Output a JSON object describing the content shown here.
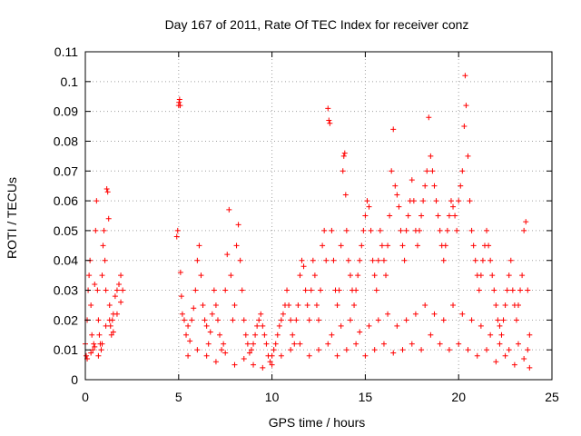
{
  "chart_data": {
    "type": "scatter",
    "title": "Day 167 of 2011, Rate Of TEC Index for receiver conz",
    "xlabel": "GPS time / hours",
    "ylabel": "ROTI / TECUs",
    "xlim": [
      0,
      25
    ],
    "ylim": [
      0,
      0.11
    ],
    "xticks": [
      0,
      5,
      10,
      15,
      20,
      25
    ],
    "xtick_labels": [
      "0",
      "5",
      "10",
      "15",
      "20",
      "25"
    ],
    "yticks": [
      0,
      0.01,
      0.02,
      0.03,
      0.04,
      0.05,
      0.06,
      0.07,
      0.08,
      0.09,
      0.1,
      0.11
    ],
    "ytick_labels": [
      "0",
      "0.01",
      "0.02",
      "0.03",
      "0.04",
      "0.05",
      "0.06",
      "0.07",
      "0.08",
      "0.09",
      "0.1",
      "0.11"
    ],
    "grid": true,
    "marker": "+",
    "color": "#ff0000",
    "series": [
      {
        "points": [
          [
            0.0,
            0.012
          ],
          [
            0.05,
            0.008
          ],
          [
            0.1,
            0.02
          ],
          [
            0.15,
            0.03
          ],
          [
            0.2,
            0.035
          ],
          [
            0.25,
            0.04
          ],
          [
            0.3,
            0.025
          ],
          [
            0.35,
            0.015
          ],
          [
            0.4,
            0.01
          ],
          [
            0.45,
            0.012
          ],
          [
            0.5,
            0.032
          ],
          [
            0.55,
            0.05
          ],
          [
            0.6,
            0.06
          ],
          [
            0.65,
            0.03
          ],
          [
            0.7,
            0.02
          ],
          [
            0.75,
            0.015
          ],
          [
            0.8,
            0.012
          ],
          [
            0.85,
            0.01
          ],
          [
            0.9,
            0.035
          ],
          [
            0.95,
            0.045
          ],
          [
            1.0,
            0.05
          ],
          [
            1.05,
            0.04
          ],
          [
            1.1,
            0.03
          ],
          [
            1.15,
            0.064
          ],
          [
            1.2,
            0.063
          ],
          [
            1.25,
            0.054
          ],
          [
            1.3,
            0.025
          ],
          [
            1.35,
            0.018
          ],
          [
            1.4,
            0.015
          ],
          [
            1.45,
            0.02
          ],
          [
            1.5,
            0.022
          ],
          [
            1.6,
            0.028
          ],
          [
            1.7,
            0.03
          ],
          [
            1.8,
            0.032
          ],
          [
            1.9,
            0.035
          ],
          [
            2.0,
            0.03
          ],
          [
            0.1,
            0.007
          ],
          [
            0.3,
            0.009
          ],
          [
            0.5,
            0.011
          ],
          [
            0.7,
            0.008
          ],
          [
            0.9,
            0.012
          ],
          [
            1.1,
            0.018
          ],
          [
            1.3,
            0.02
          ],
          [
            1.5,
            0.016
          ],
          [
            1.7,
            0.022
          ],
          [
            1.9,
            0.026
          ],
          [
            4.9,
            0.048
          ],
          [
            4.95,
            0.05
          ],
          [
            5.0,
            0.092
          ],
          [
            5.02,
            0.093
          ],
          [
            5.05,
            0.094
          ],
          [
            5.08,
            0.092
          ],
          [
            5.1,
            0.036
          ],
          [
            5.15,
            0.028
          ],
          [
            5.2,
            0.022
          ],
          [
            5.3,
            0.02
          ],
          [
            5.4,
            0.015
          ],
          [
            5.5,
            0.018
          ],
          [
            5.6,
            0.013
          ],
          [
            5.7,
            0.02
          ],
          [
            5.8,
            0.024
          ],
          [
            5.9,
            0.03
          ],
          [
            6.0,
            0.04
          ],
          [
            6.1,
            0.045
          ],
          [
            6.2,
            0.035
          ],
          [
            6.3,
            0.025
          ],
          [
            6.4,
            0.02
          ],
          [
            6.5,
            0.018
          ],
          [
            6.6,
            0.012
          ],
          [
            6.7,
            0.016
          ],
          [
            6.8,
            0.022
          ],
          [
            6.9,
            0.03
          ],
          [
            7.0,
            0.025
          ],
          [
            7.1,
            0.02
          ],
          [
            7.2,
            0.015
          ],
          [
            7.3,
            0.01
          ],
          [
            7.4,
            0.012
          ],
          [
            7.5,
            0.03
          ],
          [
            7.6,
            0.042
          ],
          [
            7.7,
            0.057
          ],
          [
            7.8,
            0.035
          ],
          [
            7.9,
            0.02
          ],
          [
            8.0,
            0.025
          ],
          [
            8.1,
            0.045
          ],
          [
            8.2,
            0.052
          ],
          [
            8.3,
            0.04
          ],
          [
            8.4,
            0.03
          ],
          [
            8.5,
            0.02
          ],
          [
            8.6,
            0.015
          ],
          [
            8.7,
            0.012
          ],
          [
            8.8,
            0.009
          ],
          [
            8.9,
            0.01
          ],
          [
            9.0,
            0.012
          ],
          [
            9.1,
            0.015
          ],
          [
            9.2,
            0.018
          ],
          [
            9.3,
            0.02
          ],
          [
            9.4,
            0.022
          ],
          [
            9.5,
            0.018
          ],
          [
            9.6,
            0.015
          ],
          [
            9.7,
            0.012
          ],
          [
            9.8,
            0.008
          ],
          [
            9.9,
            0.006
          ],
          [
            10.0,
            0.008
          ],
          [
            10.1,
            0.01
          ],
          [
            10.2,
            0.012
          ],
          [
            10.3,
            0.015
          ],
          [
            10.4,
            0.018
          ],
          [
            10.5,
            0.02
          ],
          [
            10.6,
            0.022
          ],
          [
            10.7,
            0.025
          ],
          [
            10.8,
            0.03
          ],
          [
            10.9,
            0.025
          ],
          [
            11.0,
            0.02
          ],
          [
            11.1,
            0.015
          ],
          [
            11.2,
            0.012
          ],
          [
            11.3,
            0.02
          ],
          [
            11.4,
            0.025
          ],
          [
            11.5,
            0.035
          ],
          [
            11.6,
            0.04
          ],
          [
            11.7,
            0.038
          ],
          [
            11.8,
            0.03
          ],
          [
            11.9,
            0.025
          ],
          [
            12.0,
            0.02
          ],
          [
            12.1,
            0.03
          ],
          [
            12.2,
            0.04
          ],
          [
            12.3,
            0.035
          ],
          [
            12.4,
            0.025
          ],
          [
            12.5,
            0.02
          ],
          [
            12.6,
            0.03
          ],
          [
            12.7,
            0.045
          ],
          [
            12.8,
            0.05
          ],
          [
            12.9,
            0.04
          ],
          [
            5.5,
            0.008
          ],
          [
            6.0,
            0.01
          ],
          [
            6.5,
            0.008
          ],
          [
            7.0,
            0.006
          ],
          [
            7.5,
            0.009
          ],
          [
            8.0,
            0.005
          ],
          [
            8.5,
            0.007
          ],
          [
            9.0,
            0.005
          ],
          [
            9.5,
            0.004
          ],
          [
            10.0,
            0.005
          ],
          [
            10.5,
            0.008
          ],
          [
            11.0,
            0.01
          ],
          [
            11.5,
            0.012
          ],
          [
            12.0,
            0.008
          ],
          [
            12.5,
            0.01
          ],
          [
            13.0,
            0.091
          ],
          [
            13.05,
            0.087
          ],
          [
            13.1,
            0.086
          ],
          [
            13.2,
            0.05
          ],
          [
            13.3,
            0.04
          ],
          [
            13.4,
            0.03
          ],
          [
            13.5,
            0.025
          ],
          [
            13.6,
            0.03
          ],
          [
            13.7,
            0.045
          ],
          [
            13.8,
            0.07
          ],
          [
            13.85,
            0.075
          ],
          [
            13.9,
            0.076
          ],
          [
            13.95,
            0.062
          ],
          [
            14.0,
            0.05
          ],
          [
            14.1,
            0.04
          ],
          [
            14.2,
            0.035
          ],
          [
            14.3,
            0.03
          ],
          [
            14.4,
            0.025
          ],
          [
            14.5,
            0.03
          ],
          [
            14.6,
            0.035
          ],
          [
            14.7,
            0.04
          ],
          [
            14.8,
            0.045
          ],
          [
            14.9,
            0.05
          ],
          [
            15.0,
            0.055
          ],
          [
            15.1,
            0.06
          ],
          [
            15.2,
            0.058
          ],
          [
            15.3,
            0.05
          ],
          [
            15.4,
            0.04
          ],
          [
            15.5,
            0.035
          ],
          [
            15.6,
            0.03
          ],
          [
            15.7,
            0.04
          ],
          [
            15.8,
            0.05
          ],
          [
            15.9,
            0.045
          ],
          [
            16.0,
            0.04
          ],
          [
            16.1,
            0.035
          ],
          [
            16.2,
            0.045
          ],
          [
            16.3,
            0.055
          ],
          [
            16.4,
            0.07
          ],
          [
            16.5,
            0.084
          ],
          [
            16.6,
            0.065
          ],
          [
            16.7,
            0.062
          ],
          [
            16.8,
            0.058
          ],
          [
            16.9,
            0.05
          ],
          [
            17.0,
            0.045
          ],
          [
            17.1,
            0.04
          ],
          [
            17.2,
            0.05
          ],
          [
            17.3,
            0.055
          ],
          [
            17.4,
            0.06
          ],
          [
            17.5,
            0.067
          ],
          [
            17.6,
            0.06
          ],
          [
            17.7,
            0.05
          ],
          [
            17.8,
            0.045
          ],
          [
            17.9,
            0.05
          ],
          [
            18.0,
            0.055
          ],
          [
            18.1,
            0.06
          ],
          [
            18.2,
            0.065
          ],
          [
            18.3,
            0.07
          ],
          [
            18.4,
            0.088
          ],
          [
            18.5,
            0.075
          ],
          [
            18.6,
            0.07
          ],
          [
            18.7,
            0.065
          ],
          [
            18.8,
            0.06
          ],
          [
            18.9,
            0.055
          ],
          [
            19.0,
            0.05
          ],
          [
            19.1,
            0.045
          ],
          [
            19.2,
            0.04
          ],
          [
            19.3,
            0.045
          ],
          [
            19.4,
            0.05
          ],
          [
            19.5,
            0.055
          ],
          [
            19.6,
            0.06
          ],
          [
            19.7,
            0.058
          ],
          [
            19.8,
            0.055
          ],
          [
            19.9,
            0.05
          ],
          [
            20.0,
            0.06
          ],
          [
            20.1,
            0.065
          ],
          [
            20.2,
            0.07
          ],
          [
            20.3,
            0.085
          ],
          [
            20.35,
            0.102
          ],
          [
            20.4,
            0.092
          ],
          [
            20.5,
            0.075
          ],
          [
            20.6,
            0.06
          ],
          [
            20.7,
            0.05
          ],
          [
            20.8,
            0.045
          ],
          [
            20.9,
            0.04
          ],
          [
            21.0,
            0.035
          ],
          [
            21.1,
            0.03
          ],
          [
            21.2,
            0.035
          ],
          [
            21.3,
            0.04
          ],
          [
            21.4,
            0.045
          ],
          [
            21.5,
            0.05
          ],
          [
            21.6,
            0.045
          ],
          [
            21.7,
            0.04
          ],
          [
            21.8,
            0.035
          ],
          [
            21.9,
            0.03
          ],
          [
            22.0,
            0.025
          ],
          [
            22.1,
            0.02
          ],
          [
            22.2,
            0.018
          ],
          [
            22.3,
            0.015
          ],
          [
            22.4,
            0.02
          ],
          [
            22.5,
            0.025
          ],
          [
            22.6,
            0.03
          ],
          [
            22.7,
            0.035
          ],
          [
            22.8,
            0.04
          ],
          [
            22.9,
            0.03
          ],
          [
            23.0,
            0.025
          ],
          [
            23.1,
            0.02
          ],
          [
            23.2,
            0.025
          ],
          [
            23.3,
            0.03
          ],
          [
            23.4,
            0.035
          ],
          [
            23.5,
            0.05
          ],
          [
            23.6,
            0.053
          ],
          [
            23.7,
            0.03
          ],
          [
            23.8,
            0.015
          ],
          [
            13.0,
            0.012
          ],
          [
            13.5,
            0.008
          ],
          [
            14.0,
            0.01
          ],
          [
            14.5,
            0.012
          ],
          [
            15.0,
            0.008
          ],
          [
            15.5,
            0.01
          ],
          [
            16.0,
            0.012
          ],
          [
            16.5,
            0.009
          ],
          [
            17.0,
            0.01
          ],
          [
            17.5,
            0.012
          ],
          [
            18.0,
            0.01
          ],
          [
            18.5,
            0.015
          ],
          [
            19.0,
            0.012
          ],
          [
            19.5,
            0.01
          ],
          [
            20.0,
            0.012
          ],
          [
            20.5,
            0.01
          ],
          [
            21.0,
            0.008
          ],
          [
            21.5,
            0.01
          ],
          [
            22.0,
            0.006
          ],
          [
            22.5,
            0.008
          ],
          [
            23.0,
            0.005
          ],
          [
            23.5,
            0.007
          ],
          [
            23.8,
            0.004
          ],
          [
            13.2,
            0.015
          ],
          [
            13.7,
            0.018
          ],
          [
            14.2,
            0.02
          ],
          [
            14.7,
            0.016
          ],
          [
            15.2,
            0.018
          ],
          [
            15.7,
            0.02
          ],
          [
            16.2,
            0.022
          ],
          [
            16.7,
            0.018
          ],
          [
            17.2,
            0.02
          ],
          [
            17.7,
            0.022
          ],
          [
            18.2,
            0.025
          ],
          [
            18.7,
            0.022
          ],
          [
            19.2,
            0.02
          ],
          [
            19.7,
            0.025
          ],
          [
            20.2,
            0.022
          ],
          [
            20.7,
            0.02
          ],
          [
            21.2,
            0.018
          ],
          [
            21.7,
            0.015
          ],
          [
            22.2,
            0.012
          ],
          [
            22.7,
            0.01
          ],
          [
            23.2,
            0.012
          ],
          [
            23.7,
            0.01
          ]
        ]
      }
    ]
  }
}
